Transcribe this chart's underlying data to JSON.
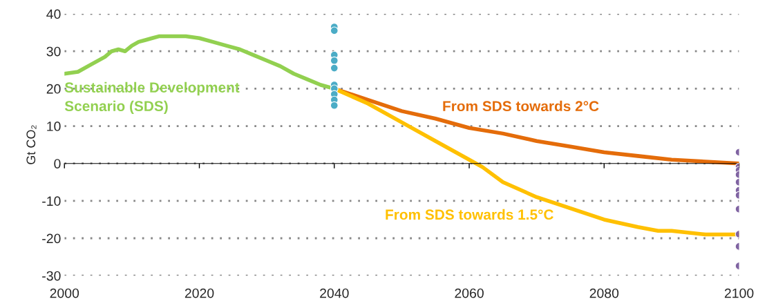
{
  "chart_data": {
    "type": "line",
    "ylabel": "Gt CO₂",
    "xlim": [
      2000,
      2100
    ],
    "xticks": [
      2000,
      2020,
      2040,
      2060,
      2080,
      2100
    ],
    "ylim": [
      -30,
      40
    ],
    "yticks": [
      -30,
      -20,
      -10,
      0,
      10,
      20,
      30,
      40
    ],
    "grid": "y",
    "legend": false,
    "series": [
      {
        "name": "Sustainable Development Scenario (SDS)",
        "color": "#92d050",
        "x": [
          2000,
          2002,
          2004,
          2006,
          2007,
          2008,
          2009,
          2010,
          2011,
          2012,
          2013,
          2014,
          2018,
          2020,
          2022,
          2024,
          2026,
          2028,
          2030,
          2032,
          2034,
          2036,
          2038,
          2040
        ],
        "values": [
          24,
          24.5,
          26.5,
          28.5,
          30,
          30.5,
          30,
          31.5,
          32.5,
          33,
          33.5,
          34,
          34,
          33.5,
          32.5,
          31.5,
          30.5,
          29,
          27.5,
          26,
          24,
          22.5,
          21,
          20
        ]
      },
      {
        "name": "From SDS towards 2°C",
        "color": "#e46c0a",
        "x": [
          2040,
          2045,
          2050,
          2055,
          2060,
          2065,
          2070,
          2075,
          2080,
          2085,
          2090,
          2095,
          2100
        ],
        "values": [
          20,
          17,
          14,
          12,
          9.5,
          8,
          6,
          4.5,
          3,
          2,
          1,
          0.5,
          0
        ]
      },
      {
        "name": "From SDS towards 1.5°C",
        "color": "#ffc000",
        "x": [
          2040,
          2045,
          2050,
          2055,
          2060,
          2062,
          2065,
          2070,
          2075,
          2080,
          2085,
          2088,
          2090,
          2095,
          2100
        ],
        "values": [
          20,
          16,
          11,
          6,
          1,
          -1,
          -5,
          -9,
          -12,
          -15,
          -17,
          -18,
          -18,
          -19,
          -19
        ]
      },
      {
        "type": "scatter",
        "color": "#4bacc6",
        "marker": "circle",
        "x": [
          2040,
          2040,
          2040,
          2040,
          2040,
          2040,
          2040,
          2040,
          2040,
          2040
        ],
        "values": [
          36.5,
          35.5,
          29,
          27.5,
          25.5,
          21,
          20,
          18.5,
          17,
          15.5
        ]
      },
      {
        "type": "scatter",
        "color": "#8064a2",
        "marker": "circle",
        "x": [
          2100,
          2100,
          2100,
          2100,
          2100,
          2100,
          2100,
          2100,
          2100,
          2100,
          2100
        ],
        "values": [
          3,
          -0.9,
          -1.8,
          -3,
          -5,
          -7.2,
          -8.5,
          -12.2,
          -18.9,
          -22.2,
          -27.4
        ]
      }
    ]
  }
}
